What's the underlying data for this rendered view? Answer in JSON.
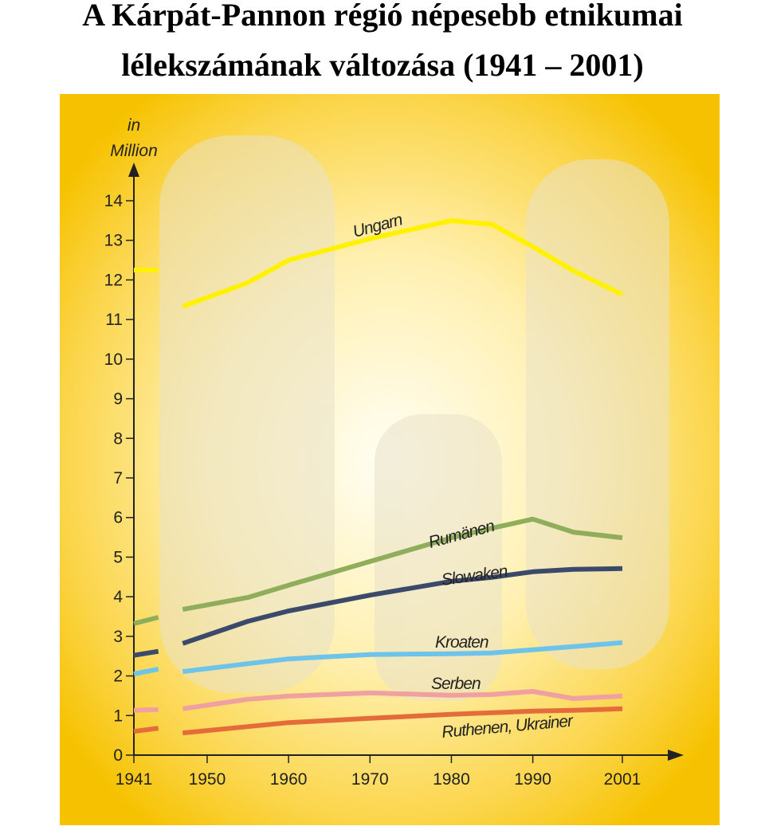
{
  "chart_data": {
    "type": "line",
    "title": [
      "A Kárpát-Pannon régió népesebb etnikumai",
      "lélekszámának változása (1941 – 2001)"
    ],
    "y_label": [
      "in",
      "Million"
    ],
    "x": [
      1941,
      1944,
      1946,
      1947,
      1955,
      1960,
      1970,
      1980,
      1985,
      1990,
      1995,
      2001
    ],
    "xlim": [
      1941,
      2001
    ],
    "xticks": [
      1941,
      1950,
      1960,
      1970,
      1980,
      1990,
      2001
    ],
    "ylim": [
      0,
      14
    ],
    "yticks": [
      0,
      1,
      2,
      3,
      4,
      5,
      6,
      7,
      8,
      9,
      10,
      11,
      12,
      13,
      14
    ],
    "series": [
      {
        "name": "Ungarn",
        "color": "#fff200",
        "values": [
          12.25,
          12.25,
          null,
          11.33,
          11.93,
          12.5,
          13.04,
          13.5,
          13.4,
          12.84,
          12.23,
          11.63
        ]
      },
      {
        "name": "Rumänen",
        "color": "#8fad5a",
        "values": [
          3.32,
          3.48,
          null,
          3.68,
          3.98,
          4.29,
          4.89,
          5.49,
          5.73,
          5.96,
          5.63,
          5.49
        ]
      },
      {
        "name": "Slowaken",
        "color": "#3b4a6b",
        "values": [
          2.52,
          2.62,
          null,
          2.82,
          3.38,
          3.64,
          4.04,
          4.39,
          4.49,
          4.63,
          4.69,
          4.71
        ]
      },
      {
        "name": "Kroaten",
        "color": "#6ec3ea",
        "values": [
          2.05,
          2.17,
          null,
          2.11,
          2.31,
          2.43,
          2.54,
          2.56,
          2.58,
          2.66,
          2.74,
          2.84
        ]
      },
      {
        "name": "Serben",
        "color": "#f0a0a0",
        "values": [
          1.13,
          1.15,
          null,
          1.17,
          1.41,
          1.49,
          1.57,
          1.51,
          1.53,
          1.61,
          1.43,
          1.49
        ]
      },
      {
        "name": "Ruthenen, Ukrainer",
        "color": "#e46c3a",
        "values": [
          0.6,
          0.68,
          null,
          0.56,
          0.72,
          0.82,
          0.93,
          1.03,
          1.07,
          1.11,
          1.13,
          1.17
        ]
      }
    ]
  }
}
